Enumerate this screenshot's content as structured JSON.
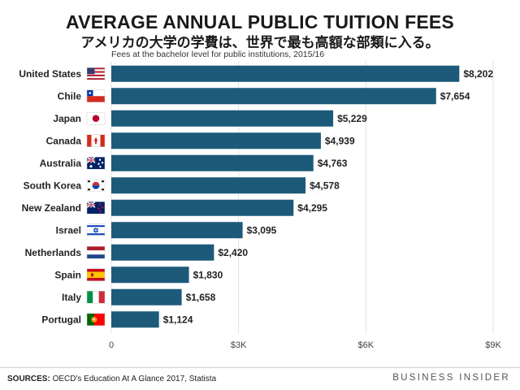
{
  "header": {
    "title": "AVERAGE ANNUAL PUBLIC TUITION FEES",
    "subtitle_jp": "アメリカの大学の学費は、世界で最も高額な部類に入る。",
    "note": "Fees at the bachelor level for public institutions, 2015/16"
  },
  "footer": {
    "source_label": "SOURCES:",
    "source_text": " OECD's Education At A Glance 2017, Statista",
    "brand": "BUSINESS INSIDER"
  },
  "colors": {
    "bar": "#1d5a7a",
    "grid": "#e3e3e3"
  },
  "chart_data": {
    "type": "bar",
    "orientation": "horizontal",
    "title": "AVERAGE ANNUAL PUBLIC TUITION FEES",
    "subtitle": "Fees at the bachelor level for public institutions, 2015/16",
    "categories": [
      "United States",
      "Chile",
      "Japan",
      "Canada",
      "Australia",
      "South Korea",
      "New Zealand",
      "Israel",
      "Netherlands",
      "Spain",
      "Italy",
      "Portugal"
    ],
    "values": [
      8202,
      7654,
      5229,
      4939,
      4763,
      4578,
      4295,
      3095,
      2420,
      1830,
      1658,
      1124
    ],
    "value_labels": [
      "$8,202",
      "$7,654",
      "$5,229",
      "$4,939",
      "$4,763",
      "$4,578",
      "$4,295",
      "$3,095",
      "$2,420",
      "$1,830",
      "$1,658",
      "$1,124"
    ],
    "flags": [
      "us-flag-icon",
      "chile-flag-icon",
      "japan-flag-icon",
      "canada-flag-icon",
      "australia-flag-icon",
      "south-korea-flag-icon",
      "new-zealand-flag-icon",
      "israel-flag-icon",
      "netherlands-flag-icon",
      "spain-flag-icon",
      "italy-flag-icon",
      "portugal-flag-icon"
    ],
    "xlim": [
      0,
      9000
    ],
    "xticks": [
      0,
      3000,
      6000,
      9000
    ],
    "xtick_labels": [
      "0",
      "$3K",
      "$6K",
      "$9K"
    ],
    "grid": true,
    "legend": "none"
  }
}
